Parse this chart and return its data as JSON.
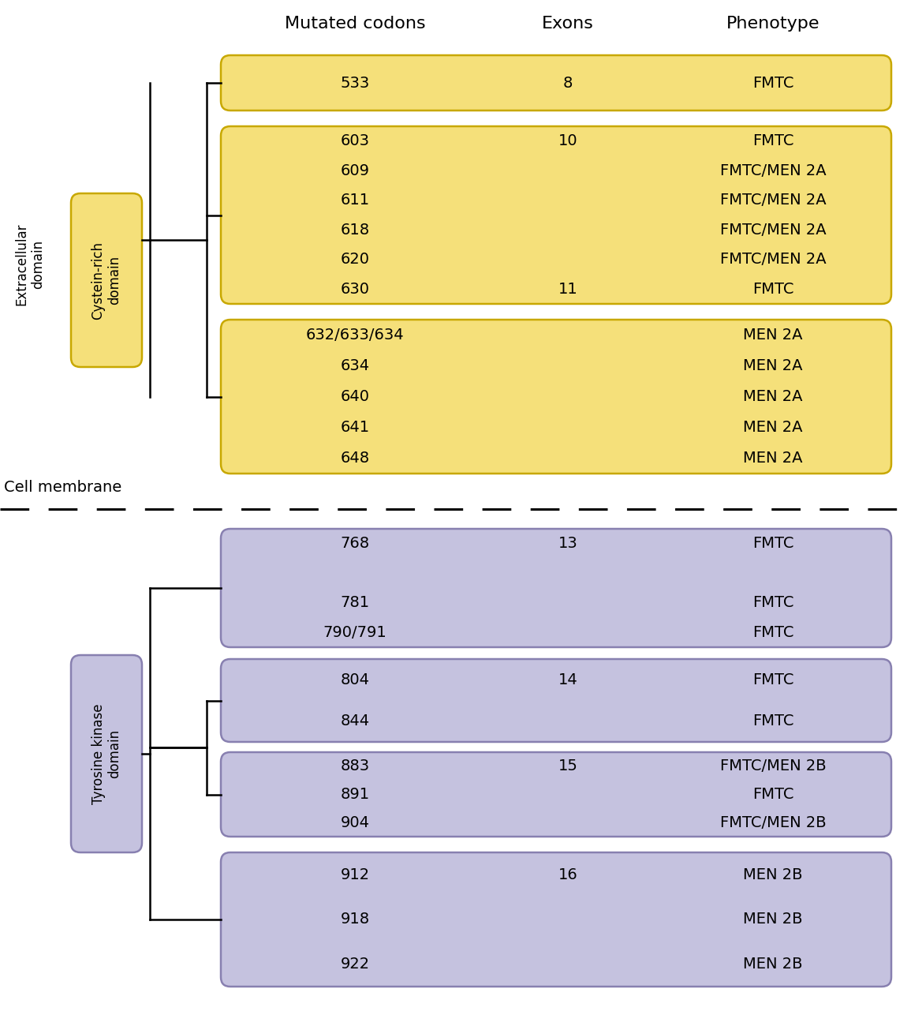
{
  "header_cols": [
    "Mutated codons",
    "Exons",
    "Phenotype"
  ],
  "yellow_fill": "#F5E07A",
  "yellow_border": "#C8A800",
  "purple_fill": "#C5C2DF",
  "purple_border": "#8880B0",
  "background": "#ffffff",
  "box1": {
    "codons": [
      "533"
    ],
    "exon_label": "8",
    "exon_row": 0,
    "phenotypes": [
      "FMTC"
    ]
  },
  "box2": {
    "codons": [
      "603",
      "609",
      "611",
      "618",
      "620",
      "630"
    ],
    "exon_label": "10",
    "exon_row": 0,
    "exon2_label": "11",
    "exon2_row": 5,
    "phenotypes": [
      "FMTC",
      "FMTC/MEN 2A",
      "FMTC/MEN 2A",
      "FMTC/MEN 2A",
      "FMTC/MEN 2A",
      "FMTC"
    ]
  },
  "box3": {
    "codons": [
      "632/633/634",
      "634",
      "640",
      "641",
      "648"
    ],
    "exon_label": "",
    "phenotypes": [
      "MEN 2A",
      "MEN 2A",
      "MEN 2A",
      "MEN 2A",
      "MEN 2A"
    ]
  },
  "boxA": {
    "codons": [
      "768",
      "",
      "781",
      "790/791"
    ],
    "exon_label": "13",
    "exon_row": 0,
    "phenotypes": [
      "FMTC",
      "",
      "FMTC",
      "FMTC"
    ]
  },
  "boxB": {
    "codons": [
      "804",
      "844"
    ],
    "exon_label": "14",
    "exon_row": 0,
    "phenotypes": [
      "FMTC",
      "FMTC"
    ]
  },
  "boxC": {
    "codons": [
      "883",
      "891",
      "904"
    ],
    "exon_label": "15",
    "exon_row": 0,
    "phenotypes": [
      "FMTC/MEN 2B",
      "FMTC",
      "FMTC/MEN 2B"
    ]
  },
  "boxD": {
    "codons": [
      "912",
      "918",
      "922"
    ],
    "exon_label": "16",
    "exon_row": 0,
    "phenotypes": [
      "MEN 2B",
      "MEN 2B",
      "MEN 2B"
    ]
  },
  "extracellular_label": "Extracellular\ndomain",
  "cysteine_label": "Cystein-rich\ndomain",
  "tyrosine_label": "Tyrosine kinase\ndomain",
  "cell_membrane_label": "Cell membrane"
}
